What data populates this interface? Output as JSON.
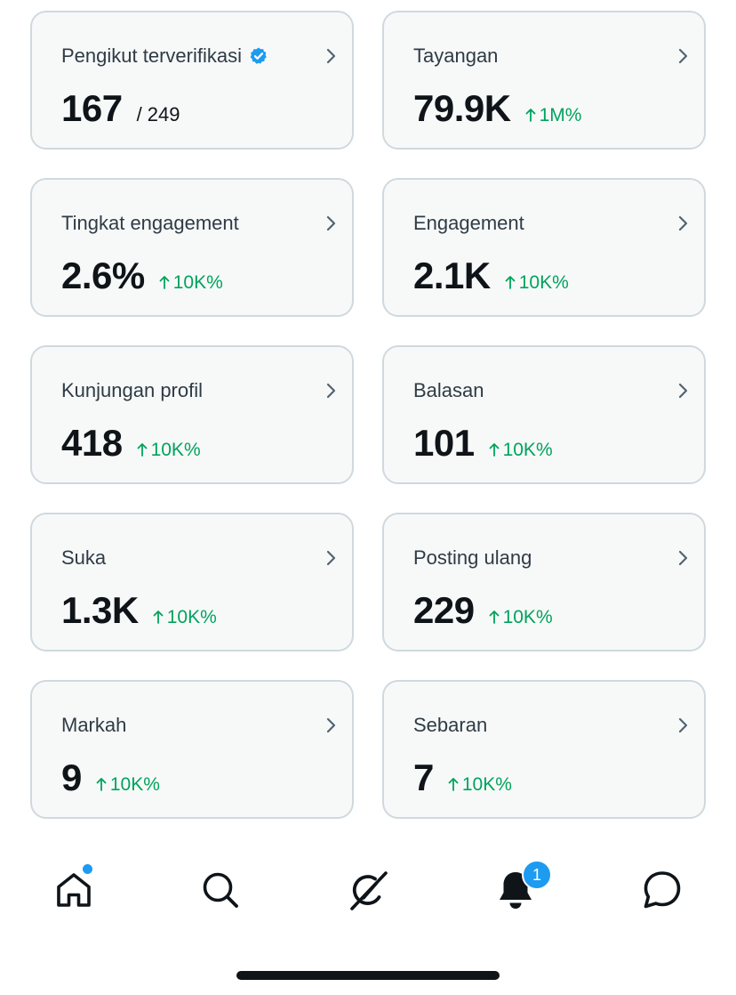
{
  "metrics": [
    {
      "label": "Pengikut terverifikasi",
      "value": "167",
      "sub": "/ 249",
      "trend": "",
      "verified": true
    },
    {
      "label": "Tayangan",
      "value": "79.9K",
      "sub": "",
      "trend": "1M%"
    },
    {
      "label": "Tingkat engagement",
      "value": "2.6%",
      "sub": "",
      "trend": "10K%"
    },
    {
      "label": "Engagement",
      "value": "2.1K",
      "sub": "",
      "trend": "10K%"
    },
    {
      "label": "Kunjungan profil",
      "value": "418",
      "sub": "",
      "trend": "10K%"
    },
    {
      "label": "Balasan",
      "value": "101",
      "sub": "",
      "trend": "10K%"
    },
    {
      "label": "Suka",
      "value": "1.3K",
      "sub": "",
      "trend": "10K%"
    },
    {
      "label": "Posting ulang",
      "value": "229",
      "sub": "",
      "trend": "10K%"
    },
    {
      "label": "Markah",
      "value": "9",
      "sub": "",
      "trend": "10K%"
    },
    {
      "label": "Sebaran",
      "value": "7",
      "sub": "",
      "trend": "10K%"
    }
  ],
  "tabbar": {
    "notifications_badge": "1",
    "icons": [
      "home-icon",
      "search-icon",
      "grok-icon",
      "bell-icon",
      "chat-icon"
    ]
  },
  "colors": {
    "accent": "#1d9bf0",
    "positive": "#00a35c",
    "card_bg": "#f7f9f9",
    "card_border": "#cfd9de"
  }
}
